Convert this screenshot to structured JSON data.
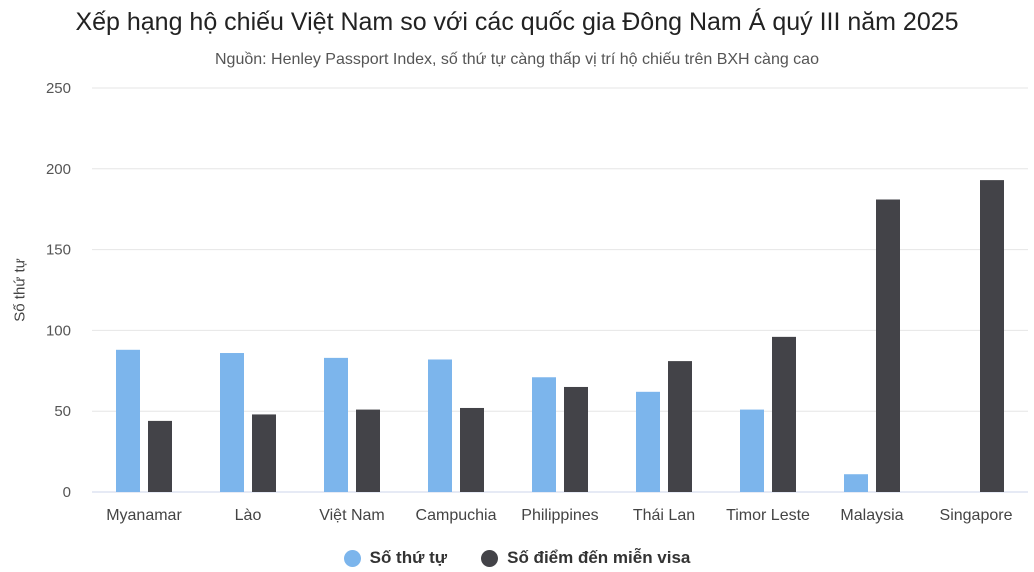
{
  "chart_data": {
    "type": "bar",
    "title": "Xếp hạng hộ chiếu Việt Nam so với các quốc gia Đông Nam Á quý III năm 2025",
    "subtitle": "Nguồn: Henley Passport Index, số thứ tự càng thấp vị trí hộ chiếu trên BXH càng cao",
    "ylabel": "Số thứ tự",
    "xlabel": "",
    "ylim": [
      0,
      250
    ],
    "yticks": [
      0,
      50,
      100,
      150,
      200,
      250
    ],
    "grid": true,
    "legend_position": "bottom",
    "categories": [
      "Myanamar",
      "Lào",
      "Việt Nam",
      "Campuchia",
      "Philippines",
      "Thái Lan",
      "Timor Leste",
      "Malaysia",
      "Singapore"
    ],
    "series": [
      {
        "name": "Số thứ tự",
        "color": "#7cb5ec",
        "values": [
          88,
          86,
          83,
          82,
          71,
          62,
          51,
          11,
          null
        ]
      },
      {
        "name": "Số điểm đến miễn visa",
        "color": "#434348",
        "values": [
          44,
          48,
          51,
          52,
          65,
          81,
          96,
          181,
          193
        ]
      }
    ]
  }
}
